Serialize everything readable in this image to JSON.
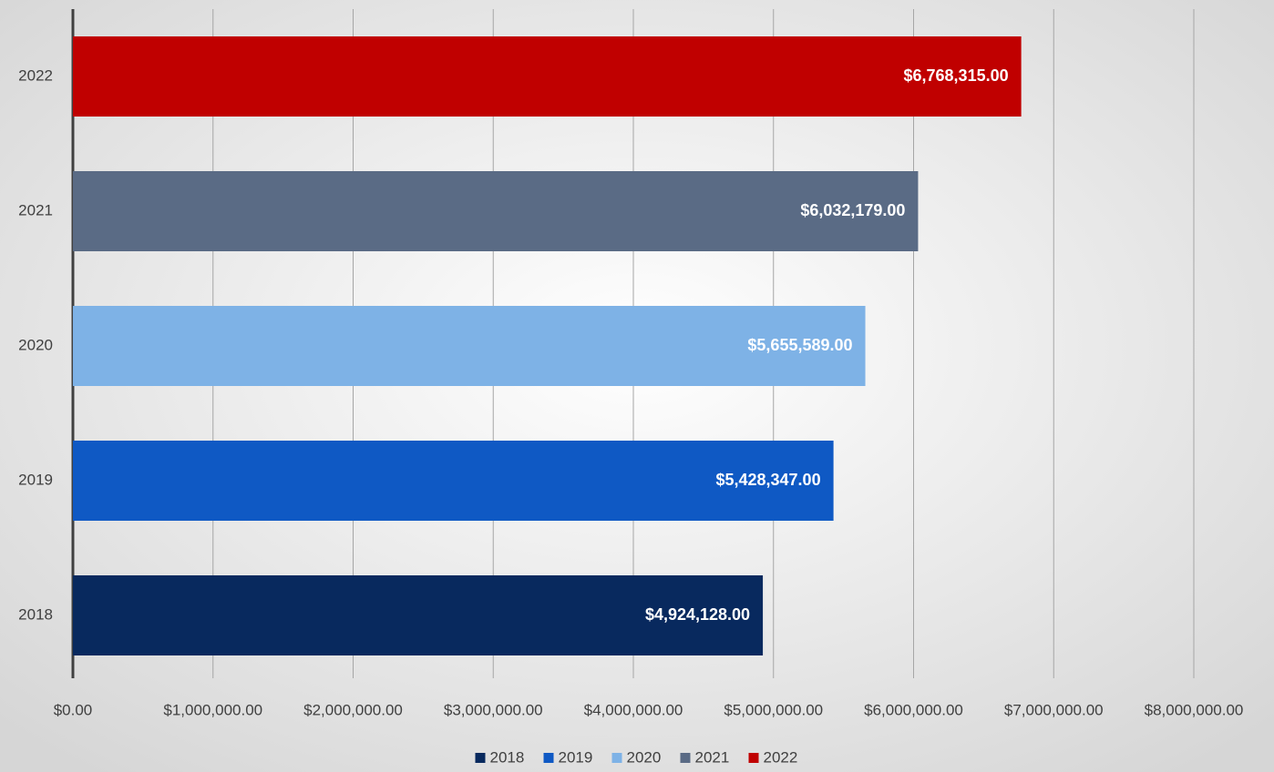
{
  "chart_data": {
    "type": "hbar",
    "categories": [
      "2018",
      "2019",
      "2020",
      "2021",
      "2022"
    ],
    "values": [
      4924128,
      5428347,
      5655589,
      6032179,
      6768315
    ],
    "value_labels": [
      "$4,924,128.00",
      "$5,428,347.00",
      "$5,655,589.00",
      "$6,032,179.00",
      "$6,768,315.00"
    ],
    "colors": [
      "#08295e",
      "#0f59c4",
      "#7eb2e6",
      "#5a6b85",
      "#c00000"
    ],
    "xlim": [
      0,
      8000000
    ],
    "xticks": [
      {
        "value": 0,
        "label": "$0.00"
      },
      {
        "value": 1000000,
        "label": "$1,000,000.00"
      },
      {
        "value": 2000000,
        "label": "$2,000,000.00"
      },
      {
        "value": 3000000,
        "label": "$3,000,000.00"
      },
      {
        "value": 4000000,
        "label": "$4,000,000.00"
      },
      {
        "value": 5000000,
        "label": "$5,000,000.00"
      },
      {
        "value": 6000000,
        "label": "$6,000,000.00"
      },
      {
        "value": 7000000,
        "label": "$7,000,000.00"
      },
      {
        "value": 8000000,
        "label": "$8,000,000.00"
      }
    ],
    "grid": true,
    "legend": "bottom"
  }
}
